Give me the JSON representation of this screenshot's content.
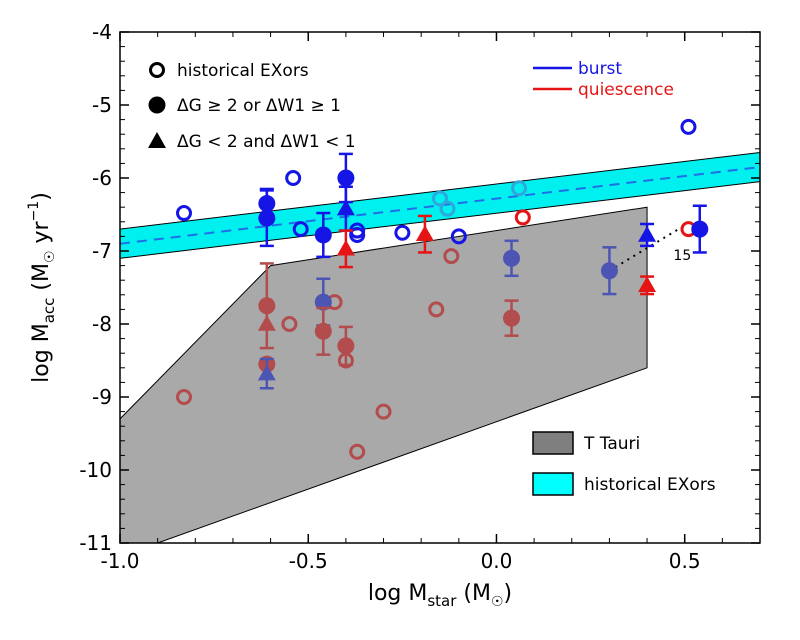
{
  "chart_data": {
    "type": "scatter",
    "xlabel": {
      "main": "log M",
      "sub": "star",
      "unit": "(M",
      "sun": "☉",
      "close": ")"
    },
    "ylabel": {
      "main": "log M",
      "sub": "acc",
      "unit": "(M",
      "sun": "☉",
      "mid": " yr",
      "sup": "−1",
      "close": ")"
    },
    "xlim": [
      -1.0,
      0.7
    ],
    "ylim": [
      -11,
      -4
    ],
    "x_ticks": [
      {
        "v": -1.0,
        "label": "-1.0"
      },
      {
        "v": -0.5,
        "label": "-0.5"
      },
      {
        "v": 0.0,
        "label": "0.0"
      },
      {
        "v": 0.5,
        "label": "0.5"
      }
    ],
    "y_ticks": [
      {
        "v": -4,
        "label": "-4"
      },
      {
        "v": -5,
        "label": "-5"
      },
      {
        "v": -6,
        "label": "-6"
      },
      {
        "v": -7,
        "label": "-7"
      },
      {
        "v": -8,
        "label": "-8"
      },
      {
        "v": -9,
        "label": "-9"
      },
      {
        "v": -10,
        "label": "-10"
      },
      {
        "v": -11,
        "label": "-11"
      }
    ],
    "colors": {
      "burst": "#1515e6",
      "quiescence": "#e61515",
      "burst_faded": "#4c55b3",
      "quiescence_faded": "#b34c4c",
      "burst_open_faded": "#2ea8dc",
      "ttauri": "#a9a9a9",
      "exor_band": "#00f0f0"
    },
    "marker_legend": [
      {
        "marker": "open-circle",
        "label": "historical EXors"
      },
      {
        "marker": "filled-circle",
        "label": "ΔG ≥ 2 or ΔW1 ≥ 1"
      },
      {
        "marker": "triangle",
        "label": "ΔG < 2 and ΔW1 < 1"
      }
    ],
    "color_legend": [
      {
        "color": "#1515e6",
        "label": "burst"
      },
      {
        "color": "#e61515",
        "label": "quiescence"
      }
    ],
    "region_legend": [
      {
        "fill": "#7f7f7f",
        "label": "T Tauri"
      },
      {
        "fill": "#00ffff",
        "label": "historical EXors"
      }
    ],
    "ttauri_region": [
      [
        -1.0,
        -9.3
      ],
      [
        -0.6,
        -7.2
      ],
      [
        0.4,
        -6.4
      ],
      [
        0.4,
        -8.6
      ],
      [
        -0.9,
        -11.0
      ],
      [
        -1.0,
        -11.0
      ]
    ],
    "exor_band": {
      "x": [
        -1.0,
        0.7
      ],
      "center": [
        -6.9,
        -5.85
      ],
      "lower": [
        -7.1,
        -6.05
      ],
      "upper": [
        -6.7,
        -5.65
      ]
    },
    "connector": {
      "from": [
        0.3,
        -7.27
      ],
      "to": [
        0.5,
        -6.65
      ],
      "label": "15",
      "label_at": [
        0.47,
        -7.12
      ]
    },
    "series": [
      {
        "name": "historical EXors burst",
        "marker": "open-circle",
        "color": "#1515e6",
        "points": [
          [
            -0.83,
            -6.48
          ],
          [
            -0.54,
            -6.0
          ],
          [
            -0.52,
            -6.7
          ],
          [
            -0.37,
            -6.72
          ],
          [
            -0.37,
            -6.78
          ],
          [
            -0.25,
            -6.75
          ],
          [
            -0.1,
            -6.8
          ],
          [
            0.51,
            -5.3
          ]
        ]
      },
      {
        "name": "historical EXors burst faded",
        "marker": "open-circle",
        "color": "#2ea8dc",
        "points": [
          [
            -0.15,
            -6.28
          ],
          [
            -0.13,
            -6.42
          ],
          [
            0.06,
            -6.14
          ]
        ]
      },
      {
        "name": "historical EXors quiescence",
        "marker": "open-circle",
        "color": "#e61515",
        "points": [
          [
            0.07,
            -6.54
          ],
          [
            0.51,
            -6.7
          ]
        ]
      },
      {
        "name": "historical EXors quiescence faded",
        "marker": "open-circle",
        "color": "#b34c4c",
        "points": [
          [
            -0.83,
            -9.0
          ],
          [
            -0.55,
            -8.0
          ],
          [
            -0.43,
            -7.7
          ],
          [
            -0.4,
            -8.5
          ],
          [
            -0.37,
            -9.75
          ],
          [
            -0.3,
            -9.2
          ],
          [
            -0.16,
            -7.8
          ],
          [
            -0.12,
            -7.07
          ]
        ]
      },
      {
        "name": "bright burst filled",
        "marker": "filled-circle",
        "color": "#1515e6",
        "points": [
          [
            -0.61,
            -6.35,
            0.2
          ],
          [
            -0.61,
            -6.55,
            0.38
          ],
          [
            -0.46,
            -6.78,
            0.3
          ],
          [
            -0.4,
            -6.0,
            0.33
          ],
          [
            0.54,
            -6.7,
            0.32
          ]
        ]
      },
      {
        "name": "faded burst filled",
        "marker": "filled-circle",
        "color": "#4c55b3",
        "points": [
          [
            -0.46,
            -7.7,
            0.32
          ],
          [
            0.04,
            -7.1,
            0.24
          ],
          [
            0.3,
            -7.27,
            0.32
          ]
        ]
      },
      {
        "name": "faded quiescence filled",
        "marker": "filled-circle",
        "color": "#b34c4c",
        "points": [
          [
            -0.61,
            -7.75,
            0.58
          ],
          [
            -0.61,
            -8.55,
            0
          ],
          [
            -0.46,
            -8.1,
            0.32
          ],
          [
            -0.4,
            -8.3,
            0.26
          ],
          [
            0.04,
            -7.92,
            0.24
          ]
        ]
      },
      {
        "name": "burst triangles",
        "marker": "triangle",
        "color": "#1515e6",
        "points": [
          [
            -0.4,
            -6.42,
            0.3
          ],
          [
            0.4,
            -6.78,
            0.15
          ]
        ]
      },
      {
        "name": "faded burst triangles",
        "marker": "triangle",
        "color": "#4c55b3",
        "points": [
          [
            -0.61,
            -8.68,
            0.2
          ]
        ]
      },
      {
        "name": "quiescence triangles",
        "marker": "triangle",
        "color": "#e61515",
        "points": [
          [
            -0.4,
            -6.97,
            0.25
          ],
          [
            -0.19,
            -6.77,
            0.25
          ],
          [
            0.4,
            -7.47,
            0.12
          ]
        ]
      },
      {
        "name": "faded quiescence triangles",
        "marker": "triangle",
        "color": "#b34c4c",
        "points": [
          [
            -0.61,
            -8.0,
            0
          ]
        ]
      }
    ]
  }
}
